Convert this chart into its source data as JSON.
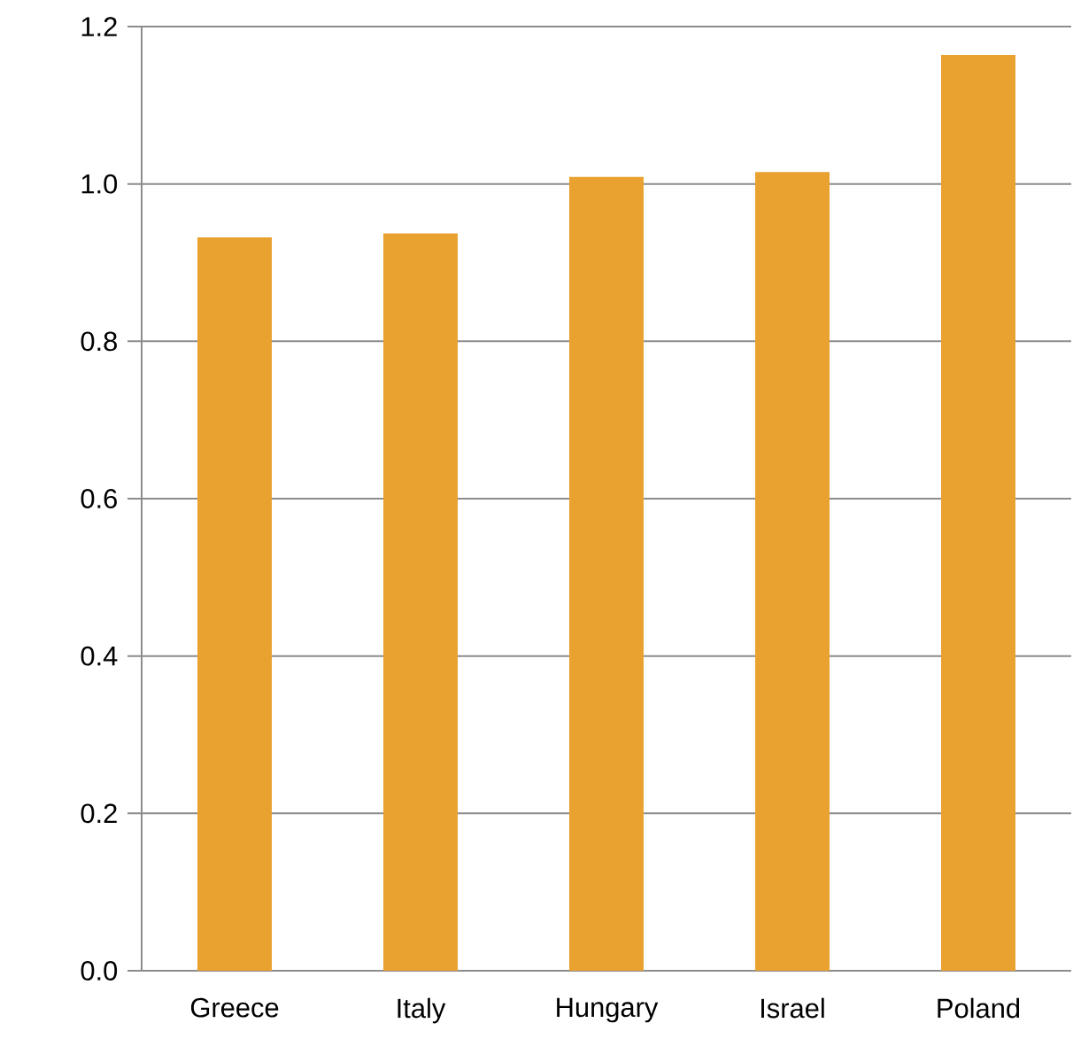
{
  "chart_data": {
    "type": "bar",
    "categories": [
      "Greece",
      "Italy",
      "Hungary",
      "Israel",
      "Poland"
    ],
    "values": [
      0.932,
      0.937,
      1.009,
      1.015,
      1.164
    ],
    "color": "#e9a130",
    "ylim": [
      0,
      1.2
    ],
    "yticks": [
      {
        "value": 0,
        "label": "0.0"
      },
      0.2,
      0.4,
      0.6,
      0.8,
      {
        "value": 1.0,
        "label": "1.0"
      },
      1.2
    ],
    "grid": "y"
  }
}
